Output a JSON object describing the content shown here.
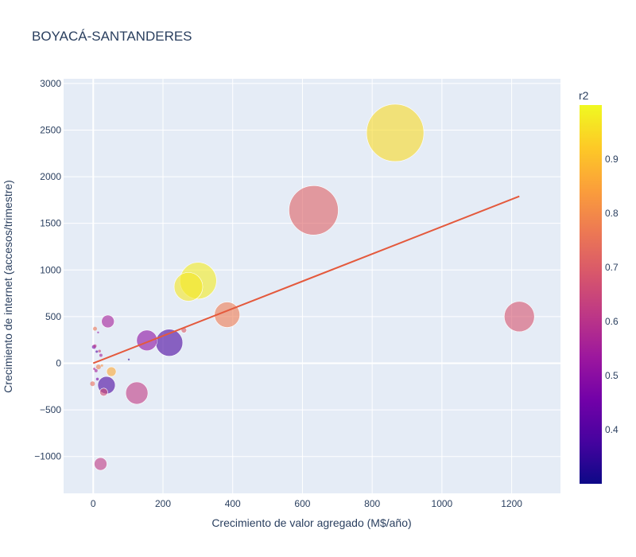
{
  "chart_data": {
    "type": "scatter",
    "title": "BOYACÁ-SANTANDERES",
    "xlabel": "Crecimiento de valor agregado (M$/año)",
    "ylabel": "Crecimiento de internet (accesos/trimestre)",
    "xlim": [
      -85,
      1340
    ],
    "ylim": [
      -1395,
      3050
    ],
    "x_ticks": [
      0,
      200,
      400,
      600,
      800,
      1000,
      1200
    ],
    "y_ticks": [
      -1000,
      -500,
      0,
      500,
      1000,
      1500,
      2000,
      2500,
      3000
    ],
    "y_tick_labels": [
      "−1000",
      "−500",
      "0",
      "500",
      "1000",
      "1500",
      "2000",
      "2500",
      "3000"
    ],
    "colorbar": {
      "title": "r2",
      "range": [
        0.3,
        1.0
      ],
      "ticks": [
        0.4,
        0.5,
        0.6,
        0.7,
        0.8,
        0.9
      ],
      "colors": [
        "#0d0887",
        "#46039f",
        "#7201a8",
        "#9c179e",
        "#bd3786",
        "#d8576b",
        "#ed7953",
        "#fb9f3a",
        "#fdca26",
        "#f0f921"
      ]
    },
    "bubble_opacity": 0.6,
    "points": [
      {
        "x": 866,
        "y": 2470,
        "r2": 0.95,
        "size": 36
      },
      {
        "x": 632,
        "y": 1640,
        "r2": 0.71,
        "size": 31
      },
      {
        "x": 301,
        "y": 885,
        "r2": 0.98,
        "size": 23
      },
      {
        "x": 273,
        "y": 820,
        "r2": 0.97,
        "size": 18
      },
      {
        "x": 384,
        "y": 520,
        "r2": 0.77,
        "size": 16
      },
      {
        "x": 1222,
        "y": 500,
        "r2": 0.68,
        "size": 19
      },
      {
        "x": 218,
        "y": 220,
        "r2": 0.38,
        "size": 17
      },
      {
        "x": 154,
        "y": 245,
        "r2": 0.5,
        "size": 13
      },
      {
        "x": 125,
        "y": -320,
        "r2": 0.62,
        "size": 14
      },
      {
        "x": 38,
        "y": -235,
        "r2": 0.38,
        "size": 11
      },
      {
        "x": 42,
        "y": 448,
        "r2": 0.55,
        "size": 8
      },
      {
        "x": 21,
        "y": -1080,
        "r2": 0.62,
        "size": 8
      },
      {
        "x": 30,
        "y": -310,
        "r2": 0.66,
        "size": 5
      },
      {
        "x": 52,
        "y": -90,
        "r2": 0.86,
        "size": 6
      },
      {
        "x": 260,
        "y": 355,
        "r2": 0.7,
        "size": 3.5
      },
      {
        "x": 5,
        "y": 370,
        "r2": 0.76,
        "size": 2.5
      },
      {
        "x": 15,
        "y": -40,
        "r2": 0.78,
        "size": 3
      },
      {
        "x": -2,
        "y": -220,
        "r2": 0.74,
        "size": 3
      },
      {
        "x": 2,
        "y": 175,
        "r2": 0.45,
        "size": 2.5
      },
      {
        "x": 5,
        "y": 185,
        "r2": 0.62,
        "size": 2
      },
      {
        "x": 22,
        "y": 85,
        "r2": 0.55,
        "size": 2
      },
      {
        "x": 8,
        "y": -80,
        "r2": 0.55,
        "size": 2
      },
      {
        "x": 12,
        "y": -170,
        "r2": 0.48,
        "size": 1.8
      },
      {
        "x": 18,
        "y": 130,
        "r2": 0.64,
        "size": 1.8
      },
      {
        "x": 10,
        "y": 125,
        "r2": 0.4,
        "size": 1.5
      },
      {
        "x": 3,
        "y": -60,
        "r2": 0.58,
        "size": 1.5
      },
      {
        "x": 25,
        "y": -25,
        "r2": 0.82,
        "size": 1.5
      },
      {
        "x": 102,
        "y": 40,
        "r2": 0.35,
        "size": 1.2
      },
      {
        "x": 14,
        "y": 330,
        "r2": 0.52,
        "size": 1.2
      }
    ],
    "trendline": {
      "x": [
        0,
        1222
      ],
      "y": [
        0,
        1790
      ],
      "color": "#e4593c"
    }
  }
}
